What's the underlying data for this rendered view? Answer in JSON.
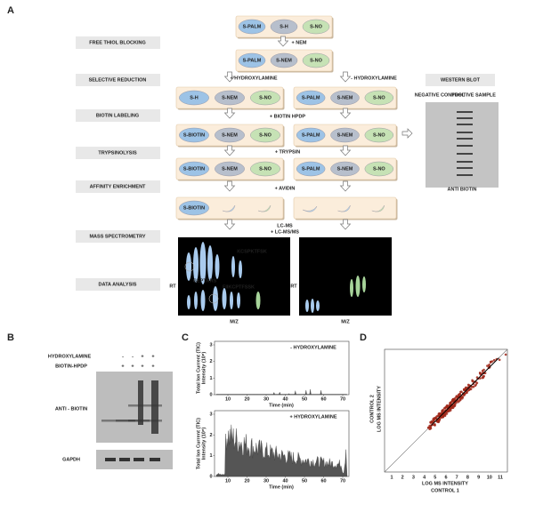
{
  "panel_a": {
    "label": "A",
    "steps": [
      "FREE THIOL BLOCKING",
      "SELECTIVE REDUCTION",
      "BIOTIN LABELING",
      "TRYPSINOLYSIS",
      "AFFINITY ENRICHMENT",
      "MASS SPECTROMETRY",
      "DATA ANALYSIS"
    ],
    "flow": {
      "center": [
        [
          "S-PALM",
          "S-H",
          "S-NO"
        ],
        [
          "S-PALM",
          "S-NEM",
          "S-NO"
        ]
      ],
      "left": [
        [
          "S-H",
          "S-NEM",
          "S-NO"
        ],
        [
          "S-BIOTIN",
          "S-NEM",
          "S-NO"
        ],
        [
          "S-BIOTIN",
          "S-NEM",
          "S-NO"
        ],
        [
          "S-BIOTIN"
        ]
      ],
      "right": [
        [
          "S-PALM",
          "S-NEM",
          "S-NO"
        ],
        [
          "S-PALM",
          "S-NEM",
          "S-NO"
        ],
        [
          "S-PALM",
          "S-NEM",
          "S-NO"
        ],
        []
      ]
    },
    "reagents": {
      "nem": "+ NEM",
      "plus_hydroxylamine": "+ HYDROXYLAMINE",
      "minus_hydroxylamine": "- HYDROXYLAMINE",
      "biotin": "+ BIOTIN HPDP",
      "trypsin": "+ TRYPSIN",
      "avidin": "+ AVIDIN",
      "lcms": "LC-MS",
      "lcmsms": "+ LC-MS/MS"
    },
    "ms": {
      "peptides": [
        "KCSPKTFSK",
        "GEPTRRS",
        "FIIKCPTFSSK"
      ],
      "y_label": "RT",
      "x_label": "M/Z"
    },
    "western": {
      "title": "WESTERN BLOT",
      "negative": "NEGATIVE CONTROL",
      "positive": "POSITIVE SAMPLE",
      "antibody": "ANTI BIOTIN"
    }
  },
  "panel_b": {
    "label": "B",
    "hydroxylamine": "HYDROXYLAMINE",
    "biotin": "BIOTIN-HPDP",
    "hydroxylamine_signs": [
      "-",
      "-",
      "+",
      "+"
    ],
    "biotin_signs": [
      "+",
      "+",
      "+",
      "+"
    ],
    "antibody": "ANTI - BIOTIN",
    "loading": "GAPDH"
  },
  "panel_c": {
    "label": "C",
    "y_label": "Total Ion Current (TIC)",
    "y_unit": "Intensity (10⁸)",
    "x_label": "Time (min)",
    "yticks": [
      0,
      1,
      2,
      3
    ],
    "xticks": [
      10,
      20,
      30,
      40,
      50,
      60,
      70
    ],
    "legend_top": "- HYDROXYLAMINE",
    "legend_bottom": "+ HYDROXYLAMINE"
  },
  "panel_d": {
    "label": "D",
    "xticks": [
      1,
      2,
      3,
      4,
      5,
      6,
      7,
      8,
      9,
      10,
      11
    ],
    "x_label": "LOG MS INTENSITY",
    "x_sample": "CONTROL 1",
    "y_label": "LOG MS INTENSITY",
    "y_sample": "CONTROL 2"
  }
}
